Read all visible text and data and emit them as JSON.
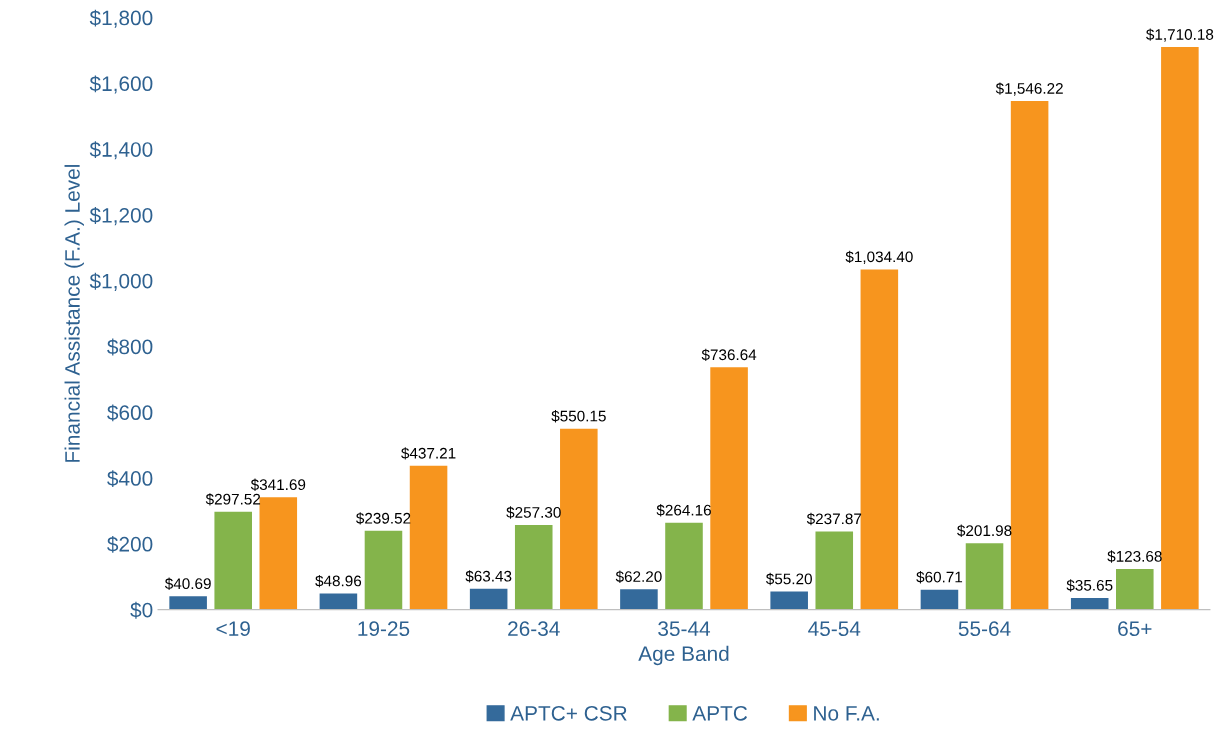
{
  "chart_data": {
    "type": "bar",
    "xlabel": "Age Band",
    "ylabel": "Financial Assistance (F.A.) Level",
    "categories": [
      "<19",
      "19-25",
      "26-34",
      "35-44",
      "45-54",
      "55-64",
      "65+"
    ],
    "series": [
      {
        "name": "APTC+ CSR",
        "color": "#346a9b",
        "values": [
          40.69,
          48.96,
          63.43,
          62.2,
          55.2,
          60.71,
          35.65
        ],
        "value_labels": [
          "$40.69",
          "$48.96",
          "$63.43",
          "$62.20",
          "$55.20",
          "$60.71",
          "$35.65"
        ]
      },
      {
        "name": "APTC",
        "color": "#84b44b",
        "values": [
          297.52,
          239.52,
          257.3,
          264.16,
          237.87,
          201.98,
          123.68
        ],
        "value_labels": [
          "$297.52",
          "$239.52",
          "$257.30",
          "$264.16",
          "$237.87",
          "$201.98",
          "$123.68"
        ]
      },
      {
        "name": "No F.A.",
        "color": "#f7951e",
        "values": [
          341.69,
          437.21,
          550.15,
          736.64,
          1034.4,
          1546.22,
          1710.18
        ],
        "value_labels": [
          "$341.69",
          "$437.21",
          "$550.15",
          "$736.64",
          "$1,034.40",
          "$1,546.22",
          "$1,710.18"
        ]
      }
    ],
    "ylim": [
      0,
      1800
    ],
    "yticks": [
      {
        "value": 0,
        "label": "$0"
      },
      {
        "value": 200,
        "label": "$200"
      },
      {
        "value": 400,
        "label": "$400"
      },
      {
        "value": 600,
        "label": "$600"
      },
      {
        "value": 800,
        "label": "$800"
      },
      {
        "value": 1000,
        "label": "$1,000"
      },
      {
        "value": 1200,
        "label": "$1,200"
      },
      {
        "value": 1400,
        "label": "$1,400"
      },
      {
        "value": 1600,
        "label": "$1,600"
      },
      {
        "value": 1800,
        "label": "$1,800"
      }
    ],
    "grid": false,
    "legend": "bottom"
  }
}
